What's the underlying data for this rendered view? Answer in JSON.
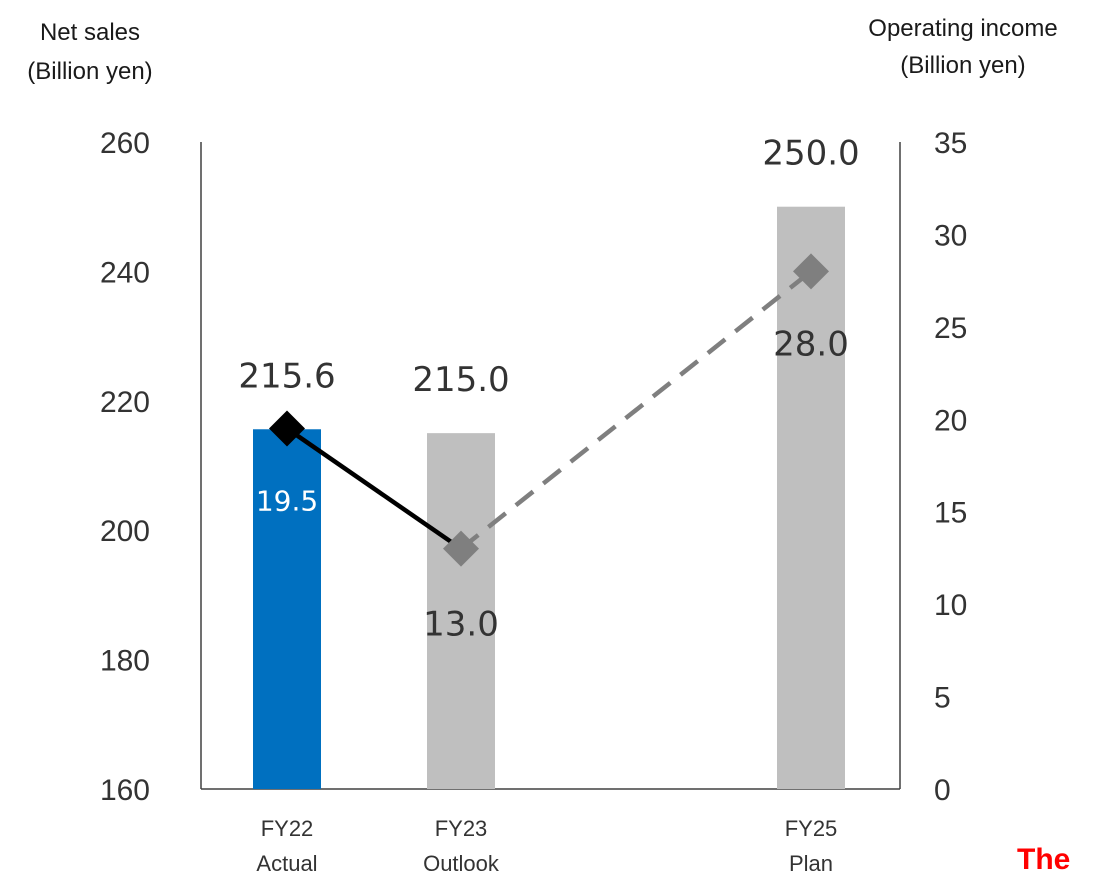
{
  "chart_data": {
    "type": "bar",
    "categories": [
      {
        "top": "FY22",
        "bottom": "Actual"
      },
      {
        "top": "FY23",
        "bottom": "Outlook"
      },
      {
        "top": "FY25",
        "bottom": "Plan"
      }
    ],
    "left_axis": {
      "label_line1": "Net sales",
      "label_line2": "(Billion yen)",
      "range": [
        160,
        260
      ],
      "ticks": [
        "160",
        "180",
        "200",
        "220",
        "240",
        "260"
      ]
    },
    "right_axis": {
      "label_line1": "Operating income",
      "label_line2": "(Billion yen)",
      "range": [
        0,
        35
      ],
      "ticks": [
        "0",
        "5",
        "10",
        "15",
        "20",
        "25",
        "30",
        "35"
      ]
    },
    "series": [
      {
        "kind": "bar",
        "axis": "left",
        "values": [
          215.6,
          215.0,
          250.0
        ],
        "labels": [
          "215.6",
          "215.0",
          "250.0"
        ],
        "colors": [
          "#0070c0",
          "#bfbfbf",
          "#bfbfbf"
        ]
      },
      {
        "kind": "line",
        "axis": "right",
        "values": [
          19.5,
          13.0,
          28.0
        ],
        "labels": [
          "19.5",
          "13.0",
          "28.0"
        ],
        "marker_colors": [
          "#000000",
          "#7f7f7f",
          "#7f7f7f"
        ],
        "segments": [
          {
            "from": 0,
            "to": 1,
            "style": "solid",
            "color": "#000000"
          },
          {
            "from": 1,
            "to": 2,
            "style": "dashed",
            "color": "#7f7f7f"
          }
        ]
      }
    ],
    "grid": false
  },
  "banner_text": "The"
}
